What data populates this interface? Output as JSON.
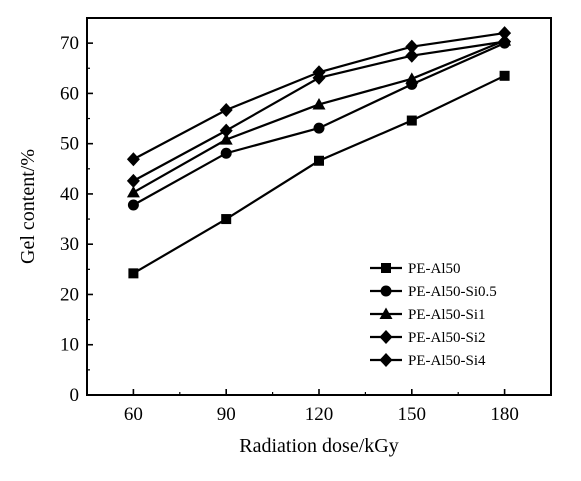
{
  "chart_data": {
    "type": "line",
    "title": "",
    "xlabel": "Radiation dose/kGy",
    "ylabel": "Gel content/%",
    "x": [
      60,
      90,
      120,
      150,
      180
    ],
    "xlim": [
      45,
      195
    ],
    "ylim": [
      0,
      75
    ],
    "xticks": [
      "60",
      "90",
      "120",
      "150",
      "180"
    ],
    "yticks": [
      "0",
      "10",
      "20",
      "30",
      "40",
      "50",
      "60",
      "70"
    ],
    "grid": false,
    "legend_position": "bottom-right",
    "series": [
      {
        "name": "PE-Al50",
        "marker": "square",
        "values": [
          24.2,
          35.0,
          46.6,
          54.6,
          63.5
        ]
      },
      {
        "name": "PE-Al50-Si0.5",
        "marker": "circle",
        "values": [
          37.8,
          48.1,
          53.1,
          61.8,
          70.0
        ]
      },
      {
        "name": "PE-Al50-Si1",
        "marker": "triangle",
        "values": [
          40.3,
          50.8,
          57.8,
          62.9,
          70.5
        ]
      },
      {
        "name": "PE-Al50-Si2",
        "marker": "diamond",
        "values": [
          42.6,
          52.6,
          63.1,
          67.5,
          70.3
        ]
      },
      {
        "name": "PE-Al50-Si4",
        "marker": "diamond",
        "values": [
          46.9,
          56.7,
          64.2,
          69.3,
          72.0
        ]
      }
    ],
    "colors": {
      "line": "#000000",
      "background": "#ffffff"
    }
  }
}
